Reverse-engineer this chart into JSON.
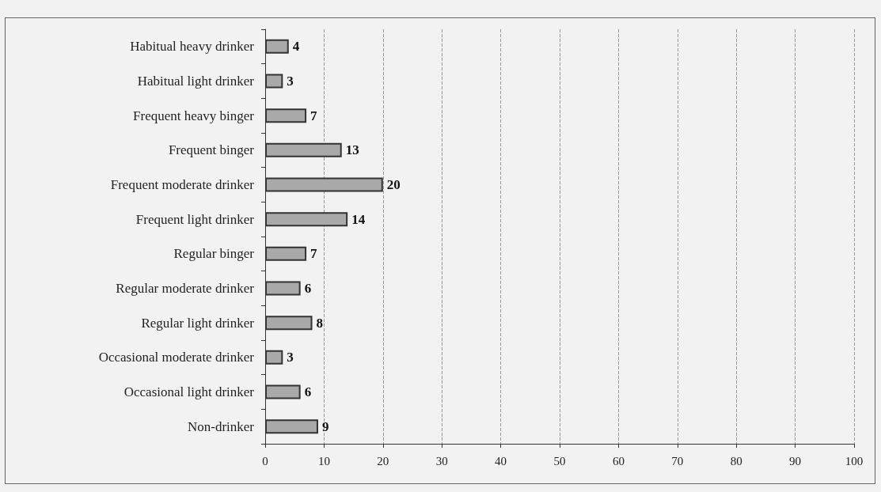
{
  "chart_data": {
    "type": "bar",
    "orientation": "horizontal",
    "categories": [
      "Habitual heavy drinker",
      "Habitual light drinker",
      "Frequent heavy binger",
      "Frequent binger",
      "Frequent moderate drinker",
      "Frequent light drinker",
      "Regular binger",
      "Regular moderate drinker",
      "Regular light drinker",
      "Occasional moderate drinker",
      "Occasional light drinker",
      "Non-drinker"
    ],
    "values": [
      4,
      3,
      7,
      13,
      20,
      14,
      7,
      6,
      8,
      3,
      6,
      9
    ],
    "color": "#a9a9a9",
    "xlim": [
      0,
      100
    ],
    "xticks": [
      0,
      10,
      20,
      30,
      40,
      50,
      60,
      70,
      80,
      90,
      100
    ],
    "grid": "x",
    "data_labels": true
  }
}
